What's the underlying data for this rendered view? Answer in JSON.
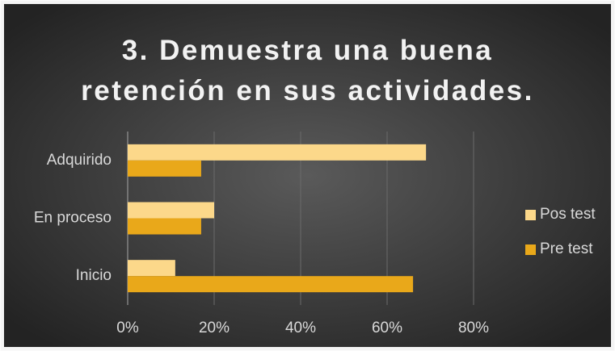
{
  "chart_data": {
    "type": "hbar",
    "title": "3. Demuestra una buena retención en sus actividades.",
    "categories": [
      "Adquirido",
      "En proceso",
      "Inicio"
    ],
    "series": [
      {
        "name": "Pos test",
        "color": "#fcd88a",
        "values": [
          69,
          20,
          11
        ]
      },
      {
        "name": "Pre test",
        "color": "#e9a81a",
        "values": [
          17,
          17,
          66
        ]
      }
    ],
    "xlim": [
      0,
      80
    ],
    "xticks": [
      {
        "value": 0,
        "label": "0%"
      },
      {
        "value": 20,
        "label": "20%"
      },
      {
        "value": 40,
        "label": "40%"
      },
      {
        "value": 60,
        "label": "60%"
      },
      {
        "value": 80,
        "label": "80%"
      }
    ],
    "grid": true,
    "legend": "right"
  }
}
